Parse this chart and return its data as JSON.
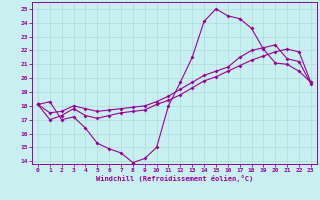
{
  "xlabel": "Windchill (Refroidissement éolien,°C)",
  "xlim": [
    -0.5,
    23.5
  ],
  "ylim": [
    13.8,
    25.5
  ],
  "xticks": [
    0,
    1,
    2,
    3,
    4,
    5,
    6,
    7,
    8,
    9,
    10,
    11,
    12,
    13,
    14,
    15,
    16,
    17,
    18,
    19,
    20,
    21,
    22,
    23
  ],
  "yticks": [
    14,
    15,
    16,
    17,
    18,
    19,
    20,
    21,
    22,
    23,
    24,
    25
  ],
  "bg_color": "#c8f0f0",
  "line_color": "#990099",
  "grid_color": "#aadddd",
  "line1_x": [
    0,
    1,
    2,
    3,
    4,
    5,
    6,
    7,
    8,
    9,
    10,
    11,
    12,
    13,
    14,
    15,
    16,
    17,
    18,
    19,
    20,
    21,
    22,
    23
  ],
  "line1_y": [
    18.1,
    18.3,
    17.0,
    17.2,
    16.4,
    15.3,
    14.9,
    14.6,
    13.9,
    14.2,
    15.0,
    18.0,
    19.7,
    21.5,
    24.1,
    25.0,
    24.5,
    24.3,
    23.6,
    22.1,
    21.1,
    21.0,
    20.5,
    19.7
  ],
  "line2_x": [
    0,
    1,
    2,
    3,
    4,
    5,
    6,
    7,
    8,
    9,
    10,
    11,
    12,
    13,
    14,
    15,
    16,
    17,
    18,
    19,
    20,
    21,
    22,
    23
  ],
  "line2_y": [
    18.1,
    17.5,
    17.6,
    18.0,
    17.8,
    17.6,
    17.7,
    17.8,
    17.9,
    18.0,
    18.3,
    18.7,
    19.2,
    19.7,
    20.2,
    20.5,
    20.8,
    21.5,
    22.0,
    22.2,
    22.4,
    21.4,
    21.2,
    19.6
  ],
  "line3_x": [
    0,
    1,
    2,
    3,
    4,
    5,
    6,
    7,
    8,
    9,
    10,
    11,
    12,
    13,
    14,
    15,
    16,
    17,
    18,
    19,
    20,
    21,
    22,
    23
  ],
  "line3_y": [
    18.1,
    17.0,
    17.3,
    17.8,
    17.3,
    17.1,
    17.3,
    17.5,
    17.6,
    17.7,
    18.1,
    18.4,
    18.8,
    19.3,
    19.8,
    20.1,
    20.5,
    20.9,
    21.3,
    21.6,
    21.9,
    22.1,
    21.9,
    19.7
  ]
}
